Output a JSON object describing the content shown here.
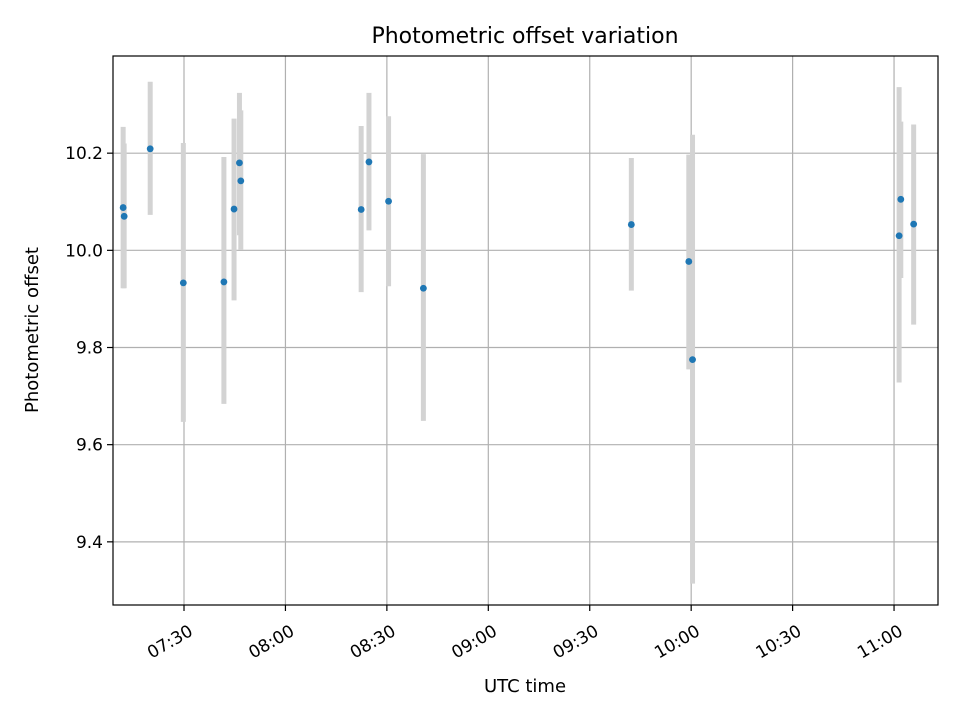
{
  "chart_data": {
    "type": "scatter",
    "title": "Photometric offset variation",
    "xlabel": "UTC time",
    "ylabel": "Photometric offset",
    "xlim": [
      "07:09",
      "11:13"
    ],
    "ylim": [
      9.27,
      10.4
    ],
    "grid": true,
    "x_ticks": [
      "07:30",
      "08:00",
      "08:30",
      "09:00",
      "09:30",
      "10:00",
      "10:30",
      "11:00"
    ],
    "y_ticks": [
      9.4,
      9.6,
      9.8,
      10.0,
      10.2
    ],
    "y_tick_labels": [
      "9.4",
      "9.6",
      "9.8",
      "10.0",
      "10.2"
    ],
    "marker_color": "#1f77b4",
    "errorbar_color": "#d3d3d3",
    "series": [
      {
        "points": [
          {
            "x": "07:12:00",
            "y": 10.088,
            "low": 9.922,
            "high": 10.254
          },
          {
            "x": "07:12:18",
            "y": 10.07,
            "low": 9.922,
            "high": 10.22
          },
          {
            "x": "07:20:00",
            "y": 10.209,
            "low": 10.073,
            "high": 10.347
          },
          {
            "x": "07:29:48",
            "y": 9.933,
            "low": 9.647,
            "high": 10.221
          },
          {
            "x": "07:41:48",
            "y": 9.935,
            "low": 9.684,
            "high": 10.192
          },
          {
            "x": "07:44:48",
            "y": 10.085,
            "low": 9.897,
            "high": 10.271
          },
          {
            "x": "07:46:24",
            "y": 10.18,
            "low": 10.031,
            "high": 10.324
          },
          {
            "x": "07:46:48",
            "y": 10.143,
            "low": 10.001,
            "high": 10.288
          },
          {
            "x": "08:22:24",
            "y": 10.084,
            "low": 9.914,
            "high": 10.256
          },
          {
            "x": "08:24:42",
            "y": 10.182,
            "low": 10.041,
            "high": 10.324
          },
          {
            "x": "08:30:30",
            "y": 10.101,
            "low": 9.926,
            "high": 10.276
          },
          {
            "x": "08:40:48",
            "y": 9.922,
            "low": 9.649,
            "high": 10.198
          },
          {
            "x": "09:42:18",
            "y": 10.053,
            "low": 9.917,
            "high": 10.19
          },
          {
            "x": "09:59:18",
            "y": 9.977,
            "low": 9.755,
            "high": 10.197
          },
          {
            "x": "10:00:24",
            "y": 9.775,
            "low": 9.314,
            "high": 10.238
          },
          {
            "x": "11:01:30",
            "y": 10.03,
            "low": 9.728,
            "high": 10.336
          },
          {
            "x": "11:02:00",
            "y": 10.105,
            "low": 9.943,
            "high": 10.265
          },
          {
            "x": "11:05:48",
            "y": 10.054,
            "low": 9.847,
            "high": 10.259
          }
        ]
      }
    ]
  }
}
